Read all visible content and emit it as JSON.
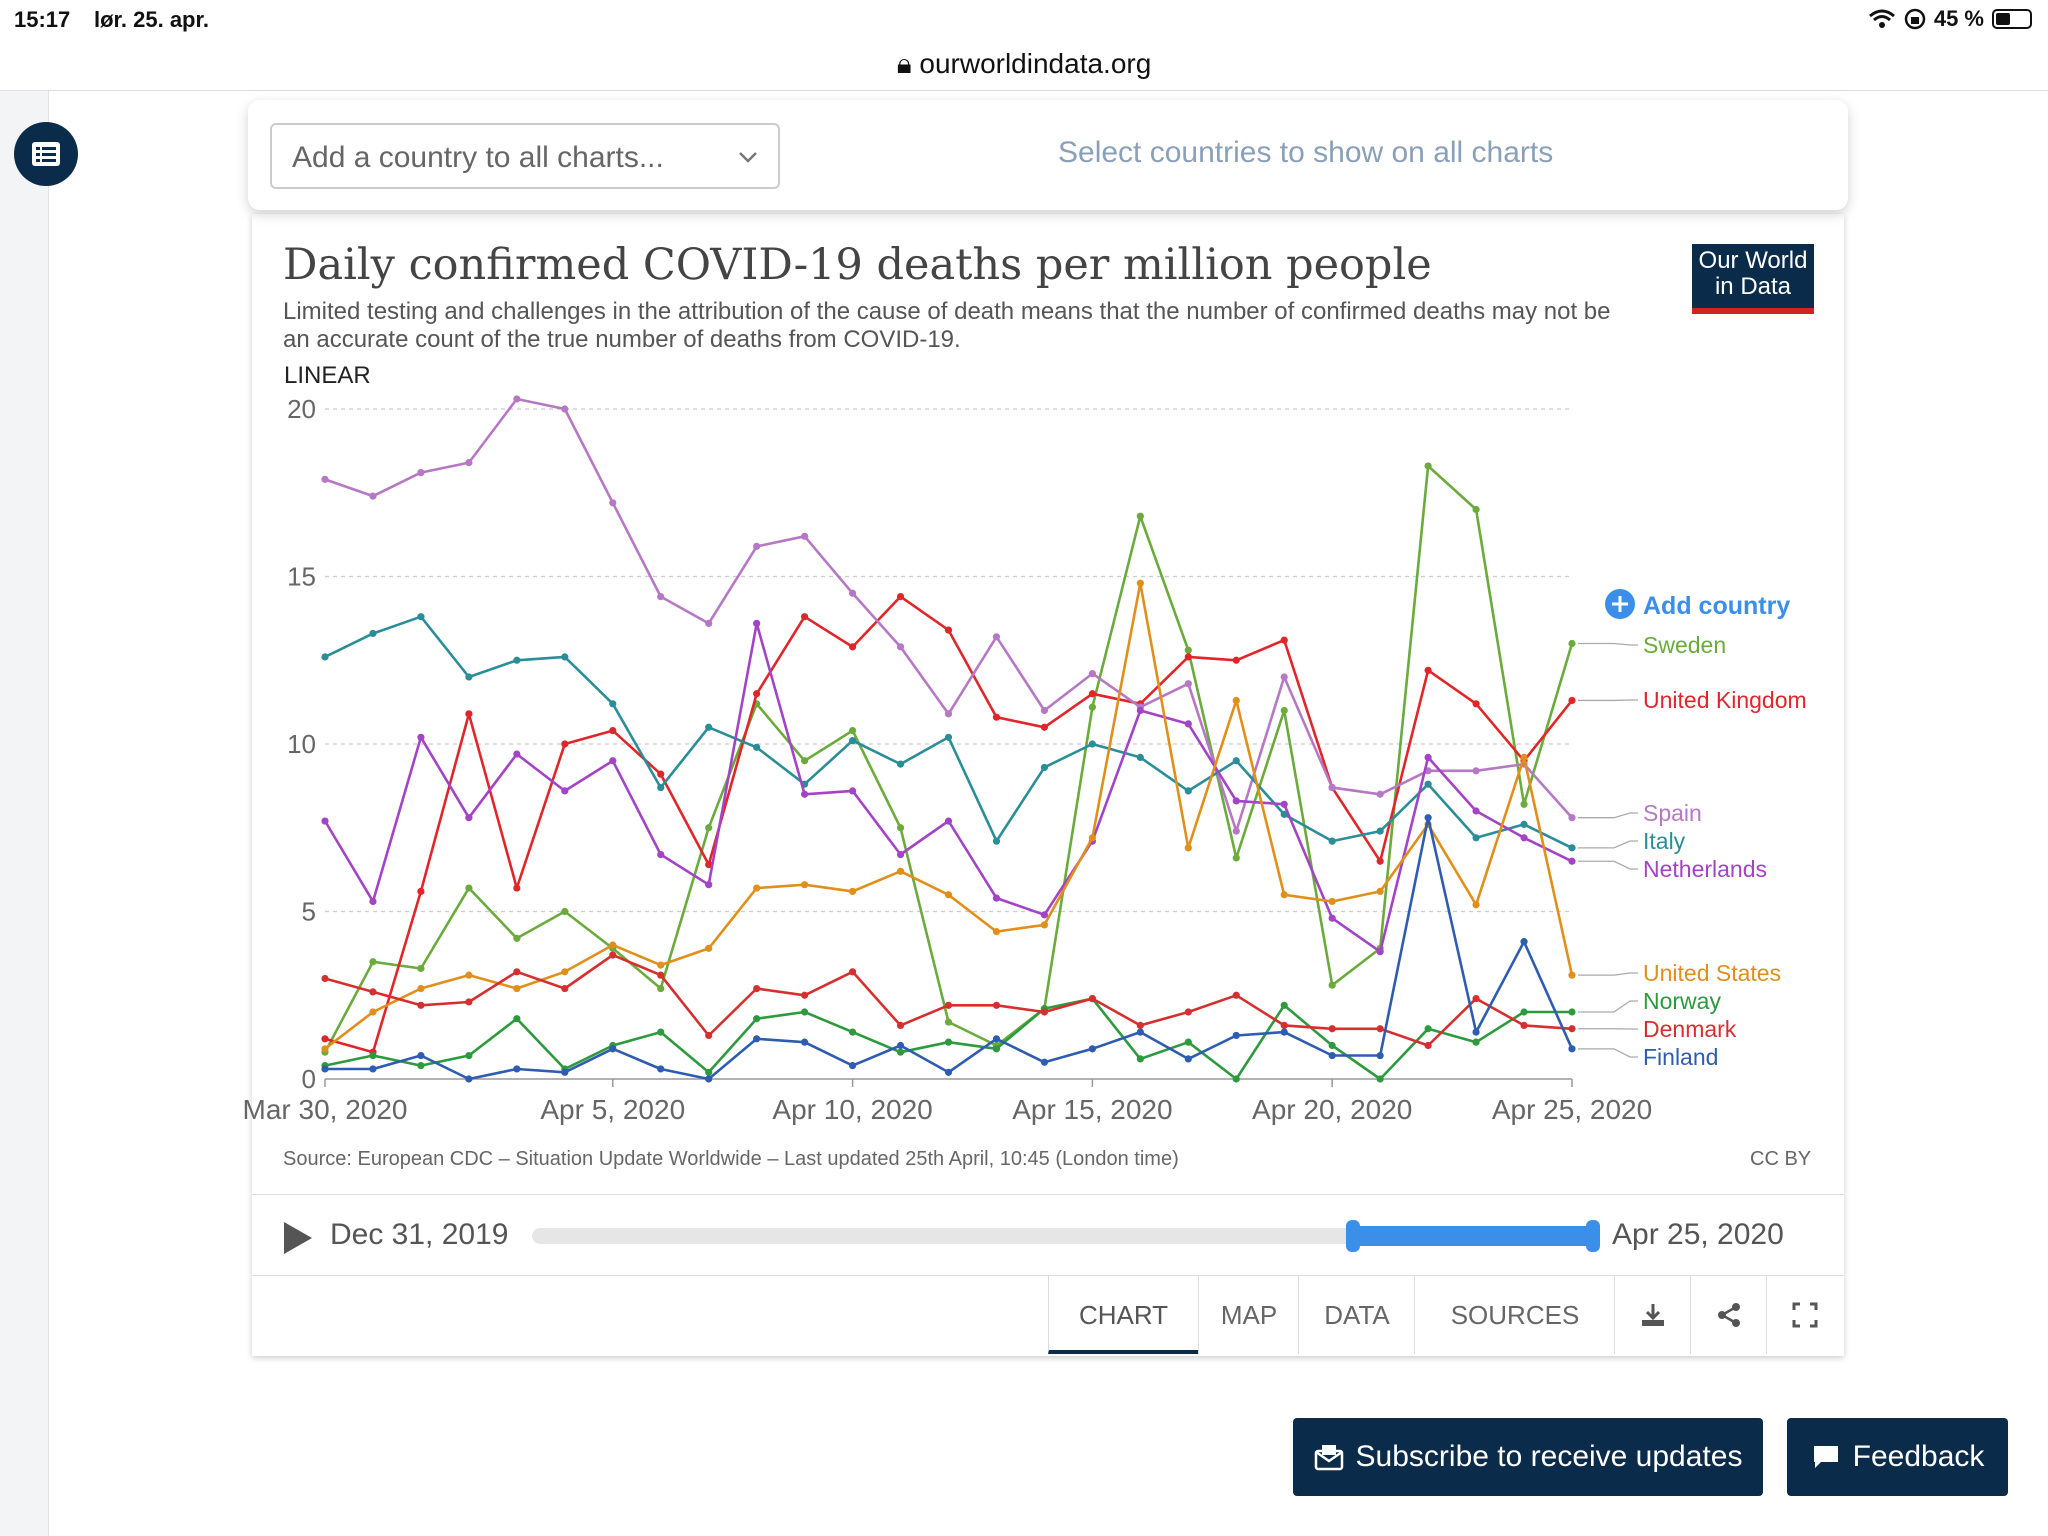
{
  "status": {
    "time": "15:17",
    "date": "lør. 25. apr.",
    "battery": "45 %"
  },
  "browser": {
    "url": "ourworldindata.org"
  },
  "country_panel": {
    "select_placeholder": "Add a country to all charts...",
    "hint": "Select countries to show on all charts"
  },
  "chart": {
    "title": "Daily confirmed COVID-19 deaths per million people",
    "subtitle": "Limited testing and challenges in the attribution of the cause of death means that the number of confirmed deaths may not be an accurate count of the true number of deaths from COVID-19.",
    "logo_line1": "Our World",
    "logo_line2": "in Data",
    "scale_label": "LINEAR",
    "add_country": "Add country",
    "source": "Source: European CDC – Situation Update Worldwide – Last updated 25th April, 10:45 (London time)",
    "license": "CC BY"
  },
  "timeline": {
    "start_label": "Dec 31, 2019",
    "end_label": "Apr 25, 2020",
    "selected_fraction_start": 0.77,
    "selected_fraction_end": 1.0
  },
  "tabs": [
    {
      "label": "CHART",
      "active": true
    },
    {
      "label": "MAP"
    },
    {
      "label": "DATA"
    },
    {
      "label": "SOURCES"
    }
  ],
  "tab_icons": [
    "download-icon",
    "share-icon",
    "fullscreen-icon"
  ],
  "buttons": {
    "subscribe": "Subscribe to receive updates",
    "feedback": "Feedback"
  },
  "chart_data": {
    "type": "line",
    "title": "Daily confirmed COVID-19 deaths per million people",
    "ylim": [
      0,
      20
    ],
    "yticks": [
      0,
      5,
      10,
      15,
      20
    ],
    "x": [
      "Mar 30",
      "Mar 31",
      "Apr 1",
      "Apr 2",
      "Apr 3",
      "Apr 4",
      "Apr 5",
      "Apr 6",
      "Apr 7",
      "Apr 8",
      "Apr 9",
      "Apr 10",
      "Apr 11",
      "Apr 12",
      "Apr 13",
      "Apr 14",
      "Apr 15",
      "Apr 16",
      "Apr 17",
      "Apr 18",
      "Apr 19",
      "Apr 20",
      "Apr 21",
      "Apr 22",
      "Apr 23",
      "Apr 24",
      "Apr 25"
    ],
    "xtick_labels": [
      "Mar 30, 2020",
      "Apr 5, 2020",
      "Apr 10, 2020",
      "Apr 15, 2020",
      "Apr 20, 2020",
      "Apr 25, 2020"
    ],
    "xtick_index": [
      0,
      6,
      11,
      16,
      21,
      26
    ],
    "grid": true,
    "legend_placement": "right",
    "series": [
      {
        "name": "Sweden",
        "color": "#6aab3c",
        "values": [
          0.8,
          3.5,
          3.3,
          5.7,
          4.2,
          5.0,
          3.9,
          2.7,
          7.5,
          11.2,
          9.5,
          10.4,
          7.5,
          1.7,
          1.0,
          2.1,
          11.1,
          16.8,
          12.8,
          6.6,
          11.0,
          2.8,
          3.9,
          18.3,
          17.0,
          8.2,
          13.0
        ]
      },
      {
        "name": "United Kingdom",
        "color": "#e0262a",
        "values": [
          1.2,
          0.8,
          5.6,
          10.9,
          5.7,
          10.0,
          10.4,
          9.1,
          6.4,
          11.5,
          13.8,
          12.9,
          14.4,
          13.4,
          10.8,
          10.5,
          11.5,
          11.2,
          12.6,
          12.5,
          13.1,
          8.7,
          6.5,
          12.2,
          11.2,
          9.5,
          11.3
        ]
      },
      {
        "name": "Spain",
        "color": "#b678c4",
        "values": [
          17.9,
          17.4,
          18.1,
          18.4,
          20.3,
          20.0,
          17.2,
          14.4,
          13.6,
          15.9,
          16.2,
          14.5,
          12.9,
          10.9,
          13.2,
          11.0,
          12.1,
          11.1,
          11.8,
          7.4,
          12.0,
          8.7,
          8.5,
          9.2,
          9.2,
          9.4,
          7.8
        ]
      },
      {
        "name": "Italy",
        "color": "#2a8e98",
        "values": [
          12.6,
          13.3,
          13.8,
          12.0,
          12.5,
          12.6,
          11.2,
          8.7,
          10.5,
          9.9,
          8.8,
          10.1,
          9.4,
          10.2,
          7.1,
          9.3,
          10.0,
          9.6,
          8.6,
          9.5,
          7.9,
          7.1,
          7.4,
          8.8,
          7.2,
          7.6,
          6.9
        ]
      },
      {
        "name": "Netherlands",
        "color": "#a343c6",
        "values": [
          7.7,
          5.3,
          10.2,
          7.8,
          9.7,
          8.6,
          9.5,
          6.7,
          5.8,
          13.6,
          8.5,
          8.6,
          6.7,
          7.7,
          5.4,
          4.9,
          7.1,
          11.0,
          10.6,
          8.3,
          8.2,
          4.8,
          3.8,
          9.6,
          8.0,
          7.2,
          6.5
        ]
      },
      {
        "name": "United States",
        "color": "#e08f1b",
        "values": [
          0.9,
          2.0,
          2.7,
          3.1,
          2.7,
          3.2,
          4.0,
          3.4,
          3.9,
          5.7,
          5.8,
          5.6,
          6.2,
          5.5,
          4.4,
          4.6,
          7.2,
          14.8,
          6.9,
          11.3,
          5.5,
          5.3,
          5.6,
          7.6,
          5.2,
          9.6,
          3.1
        ]
      },
      {
        "name": "Norway",
        "color": "#2d9a3e",
        "values": [
          0.4,
          0.7,
          0.4,
          0.7,
          1.8,
          0.3,
          1.0,
          1.4,
          0.2,
          1.8,
          2.0,
          1.4,
          0.8,
          1.1,
          0.9,
          2.1,
          2.4,
          0.6,
          1.1,
          0.0,
          2.2,
          1.0,
          0.0,
          1.5,
          1.1,
          2.0,
          2.0
        ]
      },
      {
        "name": "Denmark",
        "color": "#d62f2f",
        "values": [
          3.0,
          2.6,
          2.2,
          2.3,
          3.2,
          2.7,
          3.7,
          3.1,
          1.3,
          2.7,
          2.5,
          3.2,
          1.6,
          2.2,
          2.2,
          2.0,
          2.4,
          1.6,
          2.0,
          2.5,
          1.6,
          1.5,
          1.5,
          1.0,
          2.4,
          1.6,
          1.5
        ]
      },
      {
        "name": "Finland",
        "color": "#2e5cb0",
        "values": [
          0.3,
          0.3,
          0.7,
          0.0,
          0.3,
          0.2,
          0.9,
          0.3,
          0.0,
          1.2,
          1.1,
          0.4,
          1.0,
          0.2,
          1.2,
          0.5,
          0.9,
          1.4,
          0.6,
          1.3,
          1.4,
          0.7,
          0.7,
          7.8,
          1.4,
          4.1,
          0.9
        ]
      }
    ]
  }
}
